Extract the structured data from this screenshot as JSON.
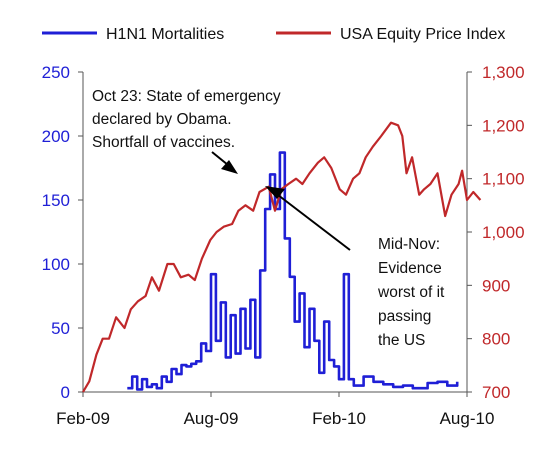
{
  "chart_data": {
    "type": "line",
    "title": "",
    "legend_placement": "top",
    "x_axis": {
      "ticks": [
        "Feb-09",
        "Aug-09",
        "Feb-10",
        "Aug-10"
      ],
      "range": [
        "2009-02-01",
        "2010-08-01"
      ]
    },
    "y_left": {
      "range": [
        0,
        250
      ],
      "ticks": [
        "0",
        "50",
        "100",
        "150",
        "200",
        "250"
      ],
      "color": "#1f1fd6"
    },
    "y_right": {
      "range": [
        700,
        1300
      ],
      "ticks": [
        "700",
        "800",
        "900",
        "1,000",
        "1,100",
        "1,200",
        "1,300"
      ],
      "color": "#c0282a"
    },
    "series": [
      {
        "name": "H1N1 Mortalities",
        "axis": "left",
        "color": "#1f1fd6",
        "step": true,
        "points": [
          [
            "2009-04-05",
            3
          ],
          [
            "2009-04-12",
            12
          ],
          [
            "2009-04-19",
            2
          ],
          [
            "2009-04-26",
            10
          ],
          [
            "2009-05-03",
            4
          ],
          [
            "2009-05-10",
            6
          ],
          [
            "2009-05-17",
            3
          ],
          [
            "2009-05-24",
            12
          ],
          [
            "2009-05-31",
            8
          ],
          [
            "2009-06-07",
            18
          ],
          [
            "2009-06-14",
            14
          ],
          [
            "2009-06-21",
            21
          ],
          [
            "2009-06-28",
            20
          ],
          [
            "2009-07-05",
            22
          ],
          [
            "2009-07-12",
            24
          ],
          [
            "2009-07-19",
            38
          ],
          [
            "2009-07-26",
            32
          ],
          [
            "2009-08-02",
            92
          ],
          [
            "2009-08-09",
            40
          ],
          [
            "2009-08-16",
            70
          ],
          [
            "2009-08-23",
            27
          ],
          [
            "2009-08-30",
            60
          ],
          [
            "2009-09-06",
            30
          ],
          [
            "2009-09-13",
            65
          ],
          [
            "2009-09-20",
            34
          ],
          [
            "2009-09-27",
            72
          ],
          [
            "2009-10-04",
            27
          ],
          [
            "2009-10-11",
            95
          ],
          [
            "2009-10-18",
            143
          ],
          [
            "2009-10-25",
            170
          ],
          [
            "2009-11-01",
            143
          ],
          [
            "2009-11-08",
            187
          ],
          [
            "2009-11-15",
            120
          ],
          [
            "2009-11-22",
            90
          ],
          [
            "2009-11-29",
            55
          ],
          [
            "2009-12-06",
            77
          ],
          [
            "2009-12-13",
            35
          ],
          [
            "2009-12-20",
            65
          ],
          [
            "2009-12-27",
            40
          ],
          [
            "2010-01-03",
            15
          ],
          [
            "2010-01-10",
            55
          ],
          [
            "2010-01-17",
            25
          ],
          [
            "2010-01-24",
            20
          ],
          [
            "2010-01-31",
            10
          ],
          [
            "2010-02-07",
            92
          ],
          [
            "2010-02-14",
            10
          ],
          [
            "2010-02-21",
            5
          ],
          [
            "2010-03-07",
            12
          ],
          [
            "2010-03-21",
            8
          ],
          [
            "2010-04-04",
            6
          ],
          [
            "2010-04-18",
            4
          ],
          [
            "2010-05-02",
            5
          ],
          [
            "2010-05-16",
            3
          ],
          [
            "2010-06-06",
            7
          ],
          [
            "2010-06-20",
            8
          ],
          [
            "2010-07-04",
            5
          ],
          [
            "2010-07-18",
            8
          ]
        ]
      },
      {
        "name": "USA Equity Price Index",
        "axis": "right",
        "color": "#c0282a",
        "step": false,
        "points": [
          [
            "2009-02-01",
            700
          ],
          [
            "2009-02-10",
            720
          ],
          [
            "2009-02-20",
            770
          ],
          [
            "2009-03-01",
            800
          ],
          [
            "2009-03-10",
            800
          ],
          [
            "2009-03-20",
            840
          ],
          [
            "2009-04-01",
            820
          ],
          [
            "2009-04-10",
            855
          ],
          [
            "2009-04-20",
            870
          ],
          [
            "2009-05-01",
            880
          ],
          [
            "2009-05-10",
            915
          ],
          [
            "2009-05-20",
            890
          ],
          [
            "2009-06-01",
            940
          ],
          [
            "2009-06-10",
            940
          ],
          [
            "2009-06-20",
            915
          ],
          [
            "2009-07-01",
            920
          ],
          [
            "2009-07-10",
            910
          ],
          [
            "2009-07-20",
            950
          ],
          [
            "2009-08-01",
            985
          ],
          [
            "2009-08-10",
            1000
          ],
          [
            "2009-08-20",
            1010
          ],
          [
            "2009-09-01",
            1015
          ],
          [
            "2009-09-10",
            1040
          ],
          [
            "2009-09-20",
            1050
          ],
          [
            "2009-10-01",
            1040
          ],
          [
            "2009-10-10",
            1075
          ],
          [
            "2009-10-23",
            1085
          ],
          [
            "2009-11-01",
            1040
          ],
          [
            "2009-11-10",
            1080
          ],
          [
            "2009-11-20",
            1090
          ],
          [
            "2009-12-01",
            1100
          ],
          [
            "2009-12-10",
            1090
          ],
          [
            "2009-12-20",
            1110
          ],
          [
            "2010-01-01",
            1130
          ],
          [
            "2010-01-10",
            1140
          ],
          [
            "2010-01-20",
            1120
          ],
          [
            "2010-02-01",
            1080
          ],
          [
            "2010-02-10",
            1070
          ],
          [
            "2010-02-20",
            1100
          ],
          [
            "2010-03-01",
            1110
          ],
          [
            "2010-03-10",
            1140
          ],
          [
            "2010-03-20",
            1160
          ],
          [
            "2010-04-01",
            1180
          ],
          [
            "2010-04-15",
            1205
          ],
          [
            "2010-04-25",
            1200
          ],
          [
            "2010-05-01",
            1180
          ],
          [
            "2010-05-07",
            1110
          ],
          [
            "2010-05-15",
            1140
          ],
          [
            "2010-05-25",
            1070
          ],
          [
            "2010-06-01",
            1080
          ],
          [
            "2010-06-10",
            1090
          ],
          [
            "2010-06-20",
            1110
          ],
          [
            "2010-07-01",
            1030
          ],
          [
            "2010-07-10",
            1070
          ],
          [
            "2010-07-20",
            1090
          ],
          [
            "2010-07-25",
            1115
          ],
          [
            "2010-08-01",
            1060
          ],
          [
            "2010-08-10",
            1075
          ],
          [
            "2010-08-20",
            1060
          ]
        ]
      }
    ],
    "annotations": [
      {
        "name": "annotation-state-of-emergency",
        "lines": [
          "Oct 23: State of emergency",
          "declared by Obama.",
          "Shortfall of vaccines."
        ]
      },
      {
        "name": "annotation-mid-nov",
        "lines": [
          "Mid-Nov:",
          "Evidence",
          "worst of it",
          "passing",
          "the US"
        ]
      }
    ]
  }
}
